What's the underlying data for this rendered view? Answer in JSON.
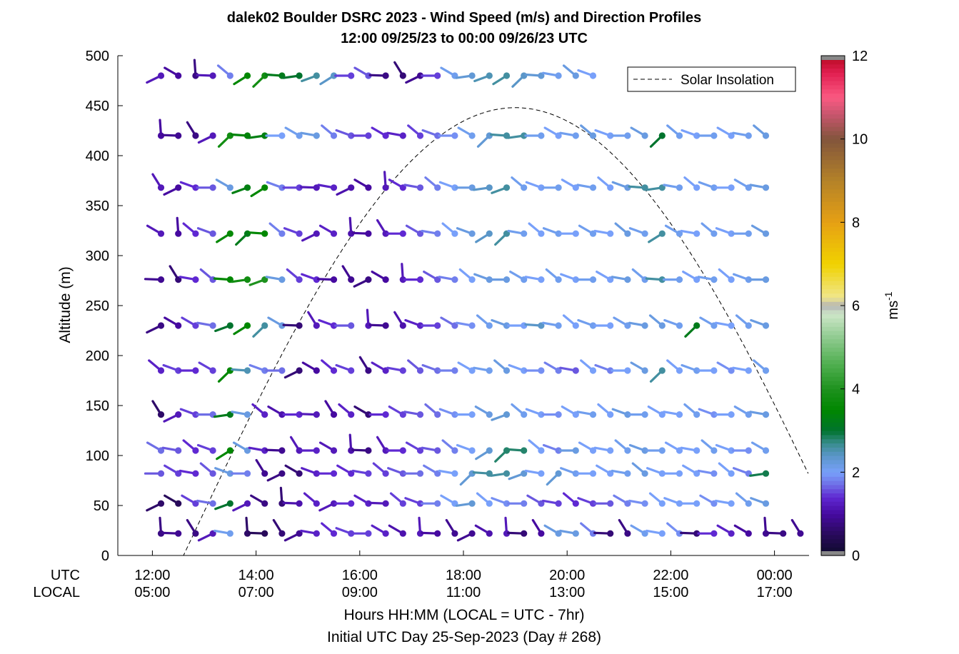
{
  "chart_data": {
    "type": "scatter",
    "title": "dalek02 Boulder DSRC 2023 - Wind Speed (m/s) and Direction Profiles",
    "subtitle": "12:00 09/25/23 to 00:00 09/26/23  UTC",
    "ylabel": "Altitude (m)",
    "xlabel": "Hours HH:MM  (LOCAL = UTC - 7hr)",
    "xlabel2": "Initial UTC Day 25-Sep-2023 (Day # 268)",
    "xrow_labels": [
      "UTC",
      "LOCAL"
    ],
    "xlim_hours": [
      11.3333,
      24.6667
    ],
    "ylim": [
      0,
      500
    ],
    "yticks": [
      0,
      50,
      100,
      150,
      200,
      250,
      300,
      350,
      400,
      450,
      500
    ],
    "xticks": [
      {
        "hour": 12,
        "utc": "12:00",
        "local": "05:00"
      },
      {
        "hour": 14,
        "utc": "14:00",
        "local": "07:00"
      },
      {
        "hour": 16,
        "utc": "16:00",
        "local": "09:00"
      },
      {
        "hour": 18,
        "utc": "18:00",
        "local": "11:00"
      },
      {
        "hour": 20,
        "utc": "20:00",
        "local": "13:00"
      },
      {
        "hour": 22,
        "utc": "22:00",
        "local": "15:00"
      },
      {
        "hour": 24,
        "utc": "00:00",
        "local": "17:00"
      }
    ],
    "legend": {
      "label": "Solar Insolation",
      "position": "top-right"
    },
    "solar": {
      "rise_hour": 12.6,
      "peak_hour": 19.0,
      "peak_altitude_units": 448
    },
    "colorbar": {
      "label": "ms",
      "label_sup": "-1",
      "min": 0,
      "max": 12,
      "ticks": [
        0,
        2,
        4,
        6,
        8,
        10,
        12
      ]
    },
    "barb_levels_m": [
      22,
      52,
      82,
      105,
      141,
      185,
      230,
      276,
      322,
      368,
      420,
      480
    ],
    "barb_time_step_min": 20,
    "barbs": [
      {
        "altitude": 22,
        "speeds": [
          0.8,
          0.9,
          0.8,
          1.2,
          2.1,
          0.6,
          0.5,
          0.7,
          0.9,
          1.3,
          1.4,
          1.5,
          1.5,
          1.3,
          1.1,
          1.2,
          1.0,
          0.9,
          0.9,
          1.1,
          1.2,
          0.7,
          1.0,
          2.2,
          2.2,
          1.8,
          0.7,
          0.8,
          2.1,
          2.0,
          1.9,
          0.7,
          1.4,
          1.3,
          1.0,
          0.9,
          0.8,
          0.9
        ]
      },
      {
        "altitude": 52,
        "speeds": [
          0.6,
          0.5,
          1.5,
          1.7,
          3.0,
          1.2,
          0.8,
          0.7,
          1.1,
          1.3,
          1.2,
          1.4,
          1.3,
          1.2,
          1.5,
          1.5,
          1.8,
          2.0,
          2.3,
          2.0,
          1.9,
          1.8,
          1.6,
          1.5,
          1.4,
          1.5,
          1.6,
          1.8,
          1.9,
          2.0,
          2.0,
          2.0,
          1.9,
          2.0,
          2.1,
          2.2
        ]
      },
      {
        "altitude": 82,
        "speeds": [
          1.6,
          1.5,
          1.4,
          1.6,
          2.2,
          1.8,
          0.9,
          0.8,
          0.7,
          1.3,
          1.4,
          1.4,
          1.5,
          1.5,
          1.6,
          1.7,
          1.8,
          2.0,
          2.3,
          2.6,
          2.6,
          2.3,
          2.0,
          2.3,
          2.1,
          2.0,
          2.0,
          2.1,
          2.2,
          2.0,
          2.0,
          2.0,
          1.9,
          2.0,
          1.8,
          2.9
        ]
      },
      {
        "altitude": 105,
        "speeds": [
          1.7,
          1.6,
          1.4,
          1.5,
          3.5,
          2.2,
          1.3,
          0.9,
          1.2,
          1.3,
          1.2,
          1.1,
          0.8,
          1.2,
          1.4,
          1.5,
          1.6,
          1.8,
          2.0,
          2.3,
          2.8,
          2.8,
          2.0,
          1.8,
          2.2,
          2.0,
          2.0,
          2.1,
          2.2,
          2.1,
          2.0,
          2.0,
          2.1,
          2.0,
          1.9,
          2.1
        ]
      },
      {
        "altitude": 141,
        "speeds": [
          0.6,
          1.2,
          1.5,
          1.7,
          3.2,
          2.2,
          1.3,
          1.1,
          1.4,
          1.2,
          1.0,
          1.3,
          0.7,
          1.4,
          1.5,
          1.6,
          1.7,
          1.9,
          2.0,
          2.2,
          2.3,
          2.1,
          2.0,
          1.9,
          2.0,
          2.1,
          2.0,
          2.2,
          2.1,
          2.0,
          2.0,
          2.1,
          1.9,
          2.0,
          2.1,
          2.2
        ]
      },
      {
        "altitude": 185,
        "speeds": [
          1.3,
          1.5,
          1.4,
          1.5,
          3.5,
          2.5,
          1.8,
          1.7,
          0.7,
          1.0,
          1.4,
          1.5,
          0.8,
          1.3,
          1.5,
          1.6,
          1.7,
          1.8,
          2.0,
          2.1,
          2.2,
          2.0,
          1.9,
          1.8,
          1.6,
          2.0,
          1.8,
          2.0,
          2.2,
          2.6,
          2.0,
          2.1,
          2.0,
          1.9,
          2.0,
          2.1
        ]
      },
      {
        "altitude": 230,
        "speeds": [
          0.8,
          1.0,
          1.5,
          1.7,
          3.0,
          3.5,
          2.6,
          2.2,
          0.7,
          1.2,
          1.4,
          1.6,
          1.2,
          0.9,
          1.1,
          1.3,
          1.5,
          1.7,
          1.9,
          2.1,
          2.2,
          2.0,
          2.4,
          2.1,
          2.0,
          2.1,
          2.0,
          2.1,
          2.2,
          2.2,
          2.1,
          3.2,
          2.1,
          2.0,
          2.1,
          2.2
        ]
      },
      {
        "altitude": 276,
        "speeds": [
          0.9,
          0.7,
          1.4,
          1.6,
          3.5,
          3.8,
          4.0,
          2.2,
          1.5,
          1.4,
          1.0,
          0.9,
          0.8,
          1.0,
          1.2,
          1.4,
          1.6,
          1.8,
          2.0,
          2.2,
          2.2,
          2.1,
          2.0,
          2.1,
          2.0,
          2.1,
          2.0,
          2.2,
          2.1,
          2.6,
          2.1,
          2.0,
          2.1,
          2.0,
          2.1,
          2.2
        ]
      },
      {
        "altitude": 322,
        "speeds": [
          1.2,
          1.0,
          1.4,
          1.6,
          3.6,
          3.2,
          3.5,
          1.8,
          1.5,
          1.2,
          1.3,
          1.1,
          1.0,
          1.2,
          1.4,
          1.6,
          1.8,
          2.0,
          2.2,
          2.4,
          2.6,
          2.1,
          2.0,
          2.1,
          2.0,
          2.1,
          2.0,
          2.2,
          2.1,
          2.6,
          2.1,
          2.0,
          2.1,
          2.0,
          2.1,
          2.2
        ]
      },
      {
        "altitude": 368,
        "speeds": [
          1.2,
          1.0,
          1.4,
          1.6,
          2.2,
          3.3,
          3.5,
          1.8,
          1.5,
          1.2,
          1.3,
          1.1,
          1.0,
          1.2,
          1.4,
          1.6,
          1.8,
          2.0,
          2.2,
          2.4,
          2.6,
          2.1,
          2.0,
          2.1,
          2.0,
          2.1,
          2.0,
          2.2,
          2.6,
          2.6,
          2.1,
          2.0,
          2.1,
          2.0,
          2.1,
          2.2
        ]
      },
      {
        "altitude": 420,
        "speeds": [
          1.0,
          0.9,
          0.8,
          1.2,
          3.8,
          3.4,
          3.3,
          2.0,
          2.1,
          2.2,
          1.8,
          1.6,
          1.5,
          1.4,
          1.3,
          1.5,
          1.7,
          1.9,
          2.1,
          2.3,
          2.6,
          2.6,
          2.1,
          2.0,
          2.1,
          2.2,
          2.0,
          2.1,
          2.2,
          3.0,
          2.1,
          2.0,
          2.1,
          2.0,
          2.1,
          2.2
        ]
      },
      {
        "altitude": 480,
        "speeds": [
          1.2,
          1.0,
          0.8,
          1.2,
          1.8,
          3.5,
          3.8,
          3.2,
          3.0,
          2.6,
          2.4,
          1.5,
          1.6,
          0.8,
          0.7,
          0.9,
          1.5,
          2.1,
          2.3,
          2.5,
          2.6,
          2.4,
          2.3,
          2.1,
          2.2,
          2.0
        ]
      }
    ]
  }
}
